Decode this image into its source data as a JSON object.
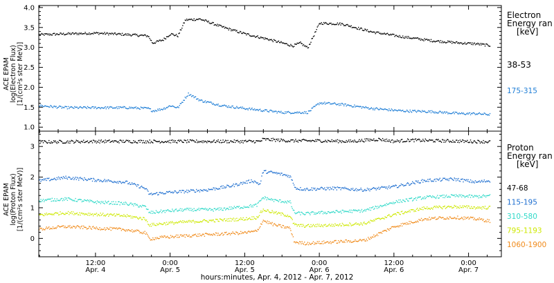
{
  "x_axis": {
    "caption": "hours:minutes, Apr.  4, 2012 - Apr.  7, 2012",
    "ticks": [
      {
        "t": 0.5,
        "time": "12:00",
        "date": "Apr. 4"
      },
      {
        "t": 1.0,
        "time": "0:00",
        "date": "Apr. 5"
      },
      {
        "t": 1.5,
        "time": "12:00",
        "date": "Apr. 5"
      },
      {
        "t": 2.0,
        "time": "0:00",
        "date": "Apr. 6"
      },
      {
        "t": 2.5,
        "time": "12:00",
        "date": "Apr. 6"
      },
      {
        "t": 3.0,
        "time": "0:00",
        "date": "Apr. 7"
      }
    ]
  },
  "chart_data": [
    {
      "type": "scatter",
      "panel": "electron",
      "ylabel_lines": [
        "ACE EPAM",
        "log(Electron Flux)",
        "[1/(cm²s ster MeV)]"
      ],
      "ylim": [
        0.9,
        4.05
      ],
      "yticks": [
        1.0,
        1.5,
        2.0,
        2.5,
        3.0,
        3.5,
        4.0
      ],
      "ytick_labels": [
        "1.0",
        "1.5",
        "2.0",
        "2.5",
        "3.0",
        "3.5",
        "4.0"
      ],
      "xlim": [
        0.12,
        3.22
      ],
      "x_unit": "days since 2012-04-04 00:00 UT",
      "legend_title_lines": [
        "Electron",
        "Energy ran",
        "[keV]"
      ],
      "series": [
        {
          "name": "38-53",
          "color": "#000000",
          "x": [
            0.12,
            0.3,
            0.5,
            0.72,
            0.85,
            0.88,
            0.95,
            1.0,
            1.05,
            1.1,
            1.2,
            1.35,
            1.5,
            1.65,
            1.75,
            1.82,
            1.87,
            1.92,
            2.0,
            2.15,
            2.35,
            2.55,
            2.75,
            2.95,
            3.05,
            3.14
          ],
          "y": [
            3.33,
            3.35,
            3.37,
            3.33,
            3.3,
            3.12,
            3.2,
            3.35,
            3.3,
            3.7,
            3.72,
            3.52,
            3.35,
            3.22,
            3.12,
            3.05,
            3.12,
            3.0,
            3.62,
            3.6,
            3.4,
            3.28,
            3.18,
            3.12,
            3.1,
            3.06
          ]
        },
        {
          "name": "175-315",
          "color": "#1f7ed6",
          "x": [
            0.12,
            0.3,
            0.5,
            0.72,
            0.85,
            0.88,
            0.95,
            1.0,
            1.05,
            1.12,
            1.2,
            1.35,
            1.5,
            1.65,
            1.75,
            1.85,
            1.92,
            2.0,
            2.15,
            2.35,
            2.55,
            2.75,
            2.95,
            3.05,
            3.14
          ],
          "y": [
            1.55,
            1.5,
            1.5,
            1.5,
            1.48,
            1.42,
            1.47,
            1.55,
            1.5,
            1.85,
            1.68,
            1.55,
            1.48,
            1.42,
            1.38,
            1.38,
            1.38,
            1.62,
            1.58,
            1.48,
            1.42,
            1.4,
            1.35,
            1.35,
            1.33
          ]
        }
      ]
    },
    {
      "type": "scatter",
      "panel": "proton",
      "ylabel_lines": [
        "ACE EPAM",
        "log(Proton Flux)",
        "[1/(cm²s ster MeV)]"
      ],
      "ylim": [
        -0.6,
        3.5
      ],
      "yticks": [
        0,
        1,
        2,
        3
      ],
      "ytick_labels": [
        "0",
        "1",
        "2",
        "3"
      ],
      "xlim": [
        0.12,
        3.22
      ],
      "x_unit": "days since 2012-04-04 00:00 UT",
      "legend_title_lines": [
        "Proton",
        "Energy ran",
        "[keV]"
      ],
      "series": [
        {
          "name": "47-68",
          "color": "#000000",
          "x": [
            0.12,
            0.5,
            0.9,
            1.3,
            1.6,
            1.62,
            1.8,
            2.0,
            2.2,
            2.4,
            2.5,
            2.6,
            2.8,
            3.0,
            3.14
          ],
          "y": [
            3.16,
            3.18,
            3.18,
            3.18,
            3.18,
            3.25,
            3.2,
            3.2,
            3.18,
            3.25,
            3.18,
            3.22,
            3.2,
            3.18,
            3.17
          ]
        },
        {
          "name": "115-195",
          "color": "#1f6fd0",
          "x": [
            0.12,
            0.3,
            0.5,
            0.7,
            0.83,
            0.86,
            0.95,
            1.1,
            1.25,
            1.4,
            1.55,
            1.6,
            1.62,
            1.7,
            1.8,
            1.84,
            1.9,
            2.1,
            2.3,
            2.5,
            2.7,
            2.9,
            3.05,
            3.14
          ],
          "y": [
            1.9,
            2.0,
            1.92,
            1.85,
            1.65,
            1.45,
            1.5,
            1.55,
            1.6,
            1.72,
            1.9,
            1.78,
            2.2,
            2.15,
            2.05,
            1.65,
            1.62,
            1.65,
            1.6,
            1.7,
            1.9,
            1.95,
            1.85,
            1.9
          ]
        },
        {
          "name": "310-580",
          "color": "#2fd9c8",
          "x": [
            0.12,
            0.3,
            0.5,
            0.7,
            0.83,
            0.86,
            0.95,
            1.1,
            1.3,
            1.5,
            1.58,
            1.62,
            1.7,
            1.8,
            1.83,
            1.9,
            2.1,
            2.3,
            2.5,
            2.7,
            2.9,
            3.05,
            3.14
          ],
          "y": [
            1.25,
            1.3,
            1.2,
            1.15,
            1.05,
            0.85,
            0.9,
            0.95,
            0.95,
            1.05,
            1.1,
            1.35,
            1.25,
            1.2,
            0.85,
            0.82,
            0.88,
            0.92,
            1.2,
            1.35,
            1.4,
            1.38,
            1.4
          ]
        },
        {
          "name": "795-1193",
          "color": "#cde800",
          "x": [
            0.12,
            0.3,
            0.5,
            0.7,
            0.83,
            0.86,
            0.95,
            1.1,
            1.3,
            1.5,
            1.58,
            1.62,
            1.7,
            1.8,
            1.83,
            1.9,
            2.1,
            2.3,
            2.5,
            2.7,
            2.9,
            3.05,
            3.14
          ],
          "y": [
            0.78,
            0.85,
            0.8,
            0.75,
            0.65,
            0.45,
            0.5,
            0.55,
            0.6,
            0.65,
            0.7,
            0.95,
            0.85,
            0.75,
            0.45,
            0.42,
            0.45,
            0.5,
            0.8,
            1.0,
            1.05,
            1.02,
            1.02
          ]
        },
        {
          "name": "1060-1900",
          "color": "#f08a1a",
          "x": [
            0.12,
            0.3,
            0.5,
            0.7,
            0.83,
            0.86,
            0.95,
            1.1,
            1.3,
            1.5,
            1.58,
            1.62,
            1.7,
            1.8,
            1.83,
            1.9,
            2.1,
            2.3,
            2.5,
            2.7,
            2.9,
            3.05,
            3.14
          ],
          "y": [
            0.32,
            0.4,
            0.35,
            0.3,
            0.2,
            0.0,
            0.05,
            0.1,
            0.15,
            0.2,
            0.25,
            0.6,
            0.45,
            0.35,
            -0.1,
            -0.15,
            -0.1,
            -0.05,
            0.4,
            0.65,
            0.7,
            0.65,
            0.58
          ]
        }
      ]
    }
  ]
}
